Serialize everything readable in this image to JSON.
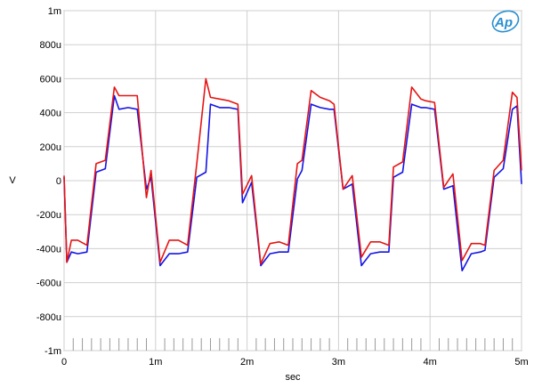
{
  "chart_data": {
    "type": "line",
    "title": "",
    "xlabel": "sec",
    "ylabel": "V",
    "xlim": [
      0,
      0.005
    ],
    "ylim": [
      -0.001,
      0.001
    ],
    "grid": true,
    "x_ticks": [
      {
        "value": 0,
        "label": "0"
      },
      {
        "value": 0.001,
        "label": "1m"
      },
      {
        "value": 0.002,
        "label": "2m"
      },
      {
        "value": 0.003,
        "label": "3m"
      },
      {
        "value": 0.004,
        "label": "4m"
      },
      {
        "value": 0.005,
        "label": "5m"
      }
    ],
    "y_ticks": [
      {
        "value": 0.001,
        "label": "1m"
      },
      {
        "value": 0.0008,
        "label": "800u"
      },
      {
        "value": 0.0006,
        "label": "600u"
      },
      {
        "value": 0.0004,
        "label": "400u"
      },
      {
        "value": 0.0002,
        "label": "200u"
      },
      {
        "value": 0,
        "label": "0"
      },
      {
        "value": -0.0002,
        "label": "-200u"
      },
      {
        "value": -0.0004,
        "label": "-400u"
      },
      {
        "value": -0.0006,
        "label": "-600u"
      },
      {
        "value": -0.0008,
        "label": "-800u"
      },
      {
        "value": -0.001,
        "label": "-1m"
      }
    ],
    "series": [
      {
        "color": "#1414e6",
        "x": [
          0,
          3e-05,
          8e-05,
          0.00015,
          0.00025,
          0.00035,
          0.00045,
          0.00055,
          0.0006,
          0.0007,
          0.0008,
          0.0009,
          0.00095,
          0.00105,
          0.00115,
          0.00125,
          0.00135,
          0.00145,
          0.00155,
          0.0016,
          0.0017,
          0.0018,
          0.0019,
          0.00195,
          0.00205,
          0.00215,
          0.00225,
          0.00235,
          0.00245,
          0.00255,
          0.0026,
          0.0027,
          0.0028,
          0.0029,
          0.00295,
          0.00305,
          0.00315,
          0.00325,
          0.00335,
          0.00345,
          0.00355,
          0.0036,
          0.0037,
          0.0038,
          0.0039,
          0.00395,
          0.00405,
          0.00415,
          0.00425,
          0.00435,
          0.00445,
          0.00455,
          0.0046,
          0.0047,
          0.0048,
          0.0049,
          0.00495,
          0.005
        ],
        "y": [
          2e-05,
          -0.00048,
          -0.00042,
          -0.00043,
          -0.00042,
          5e-05,
          7e-05,
          0.0005,
          0.00042,
          0.00043,
          0.00042,
          -5e-05,
          2e-05,
          -0.0005,
          -0.00043,
          -0.00043,
          -0.00042,
          2e-05,
          5e-05,
          0.00045,
          0.00043,
          0.00043,
          0.00042,
          -0.00013,
          -1e-05,
          -0.0005,
          -0.00043,
          -0.00042,
          -0.00042,
          1e-05,
          6e-05,
          0.00045,
          0.00043,
          0.00042,
          0.00042,
          -5e-05,
          -2e-05,
          -0.0005,
          -0.00043,
          -0.00042,
          -0.00042,
          2e-05,
          5e-05,
          0.00045,
          0.00043,
          0.00043,
          0.00042,
          -5e-05,
          -3e-05,
          -0.00053,
          -0.00043,
          -0.00042,
          -0.00041,
          2e-05,
          7e-05,
          0.00042,
          0.00044,
          -2e-05
        ]
      },
      {
        "color": "#e61414",
        "x": [
          0,
          3e-05,
          8e-05,
          0.00015,
          0.00025,
          0.00035,
          0.00045,
          0.00055,
          0.0006,
          0.0007,
          0.0008,
          0.0009,
          0.00095,
          0.00105,
          0.00115,
          0.00125,
          0.00135,
          0.00145,
          0.00155,
          0.0016,
          0.0017,
          0.0018,
          0.0019,
          0.00195,
          0.00205,
          0.00215,
          0.00225,
          0.00235,
          0.00245,
          0.00255,
          0.0026,
          0.0027,
          0.0028,
          0.0029,
          0.00295,
          0.00305,
          0.00315,
          0.00325,
          0.00335,
          0.00345,
          0.00355,
          0.0036,
          0.0037,
          0.0038,
          0.0039,
          0.00395,
          0.00405,
          0.00415,
          0.00425,
          0.00435,
          0.00445,
          0.00455,
          0.0046,
          0.0047,
          0.0048,
          0.0049,
          0.00495,
          0.005
        ],
        "y": [
          3e-05,
          -0.00048,
          -0.00035,
          -0.00035,
          -0.00038,
          0.0001,
          0.00012,
          0.00055,
          0.0005,
          0.0005,
          0.0005,
          -0.0001,
          6e-05,
          -0.00048,
          -0.00035,
          -0.00035,
          -0.00038,
          0.0001,
          0.0006,
          0.00049,
          0.00048,
          0.00047,
          0.00045,
          -8e-05,
          3e-05,
          -0.00049,
          -0.00037,
          -0.00036,
          -0.00038,
          0.0001,
          0.00012,
          0.00053,
          0.00049,
          0.00047,
          0.00045,
          -5e-05,
          3e-05,
          -0.00045,
          -0.00036,
          -0.00036,
          -0.00038,
          8e-05,
          0.00011,
          0.00055,
          0.00048,
          0.00047,
          0.00046,
          -4e-05,
          4e-05,
          -0.00047,
          -0.00037,
          -0.00037,
          -0.00038,
          6e-05,
          0.00012,
          0.00052,
          0.00049,
          6e-05
        ]
      }
    ]
  },
  "logo": {
    "text": "Ap",
    "color": "#2a8fd0"
  }
}
